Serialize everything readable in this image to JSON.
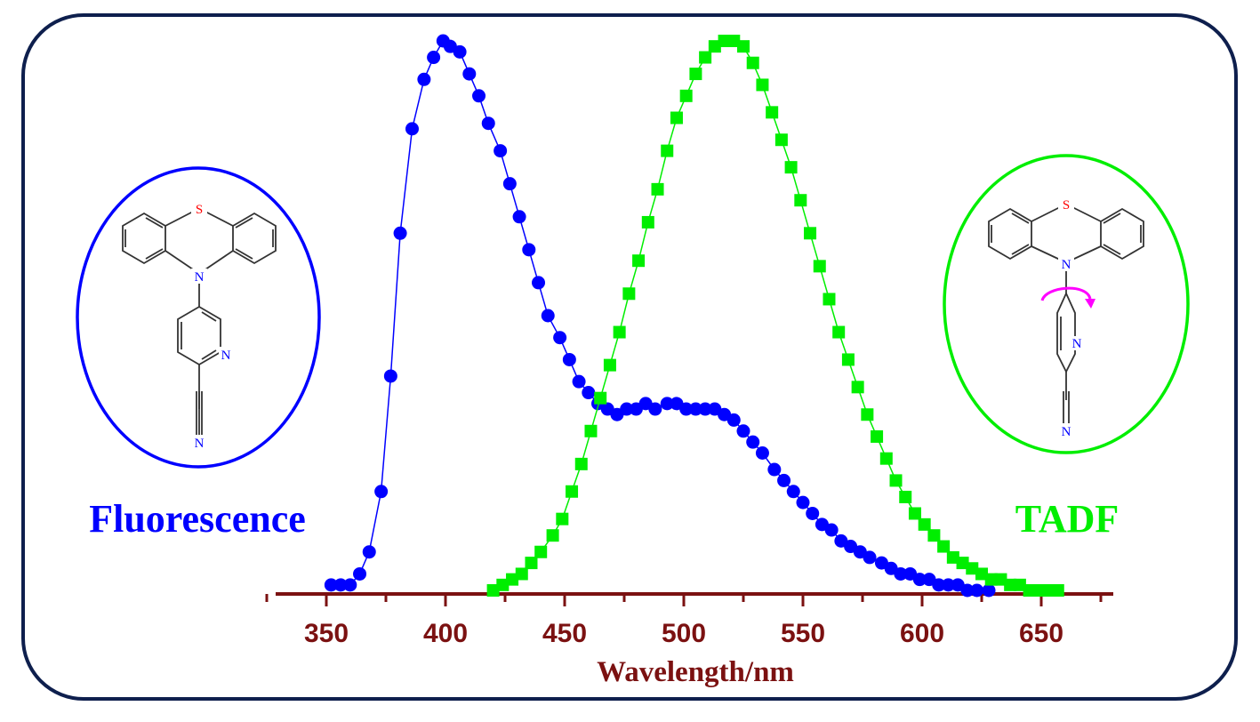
{
  "chart_data": {
    "type": "line",
    "xlabel": "Wavelength/nm",
    "ylabel": "",
    "xlim": [
      325,
      675
    ],
    "ylim": [
      0,
      1
    ],
    "x_ticks": [
      "350",
      "400",
      "450",
      "500",
      "550",
      "600",
      "650"
    ],
    "series": [
      {
        "name": "Fluorescence",
        "color": "#0000ff",
        "marker": "circle",
        "x": [
          352,
          356,
          360,
          364,
          368,
          373,
          377,
          381,
          386,
          391,
          395,
          399,
          402,
          406,
          410,
          414,
          418,
          423,
          427,
          431,
          435,
          439,
          443,
          448,
          452,
          456,
          460,
          464,
          468,
          472,
          476,
          480,
          484,
          488,
          493,
          497,
          501,
          505,
          509,
          513,
          517,
          521,
          525,
          529,
          533,
          538,
          542,
          546,
          550,
          554,
          558,
          562,
          566,
          570,
          574,
          578,
          583,
          587,
          591,
          595,
          599,
          603,
          607,
          611,
          615,
          619,
          623,
          628
        ],
        "y": [
          0.01,
          0.01,
          0.01,
          0.03,
          0.07,
          0.18,
          0.39,
          0.65,
          0.84,
          0.93,
          0.97,
          1.0,
          0.99,
          0.98,
          0.94,
          0.9,
          0.85,
          0.8,
          0.74,
          0.68,
          0.62,
          0.56,
          0.5,
          0.46,
          0.42,
          0.38,
          0.36,
          0.34,
          0.33,
          0.32,
          0.33,
          0.33,
          0.34,
          0.33,
          0.34,
          0.34,
          0.33,
          0.33,
          0.33,
          0.33,
          0.32,
          0.31,
          0.29,
          0.27,
          0.25,
          0.22,
          0.2,
          0.18,
          0.16,
          0.14,
          0.12,
          0.11,
          0.09,
          0.08,
          0.07,
          0.06,
          0.05,
          0.04,
          0.03,
          0.03,
          0.02,
          0.02,
          0.01,
          0.01,
          0.01,
          0.0,
          0.0,
          0.0
        ]
      },
      {
        "name": "TADF",
        "color": "#00ee00",
        "marker": "square",
        "x": [
          420,
          424,
          428,
          432,
          436,
          440,
          445,
          449,
          453,
          457,
          461,
          465,
          469,
          473,
          477,
          481,
          485,
          489,
          493,
          497,
          501,
          505,
          509,
          513,
          517,
          521,
          525,
          529,
          533,
          537,
          541,
          545,
          549,
          553,
          557,
          561,
          565,
          569,
          573,
          577,
          581,
          585,
          589,
          593,
          597,
          601,
          605,
          609,
          613,
          617,
          621,
          625,
          629,
          633,
          637,
          641,
          645,
          649,
          653,
          657
        ],
        "y": [
          0.0,
          0.01,
          0.02,
          0.03,
          0.05,
          0.07,
          0.1,
          0.13,
          0.18,
          0.23,
          0.29,
          0.35,
          0.41,
          0.47,
          0.54,
          0.6,
          0.67,
          0.73,
          0.8,
          0.86,
          0.9,
          0.94,
          0.97,
          0.99,
          1.0,
          1.0,
          0.99,
          0.96,
          0.92,
          0.87,
          0.82,
          0.77,
          0.71,
          0.65,
          0.59,
          0.53,
          0.47,
          0.42,
          0.37,
          0.32,
          0.28,
          0.24,
          0.2,
          0.17,
          0.14,
          0.12,
          0.1,
          0.08,
          0.06,
          0.05,
          0.04,
          0.03,
          0.02,
          0.02,
          0.01,
          0.01,
          0.0,
          0.0,
          0.0,
          0.0
        ]
      }
    ]
  },
  "labels": {
    "left": "Fluorescence",
    "right": "TADF"
  },
  "molecule": {
    "atom_s": "S",
    "atom_n_center": "N",
    "atom_n_ring": "N",
    "atom_n_nitrile": "N"
  },
  "colors": {
    "frame": "#0e1f4d",
    "axis": "#7b1111",
    "fluorescence": "#0000ff",
    "tadf": "#00ee00",
    "rotation_arrow": "#ff00ff",
    "sulfur": "#ff0000",
    "nitrogen": "#0000ff"
  }
}
